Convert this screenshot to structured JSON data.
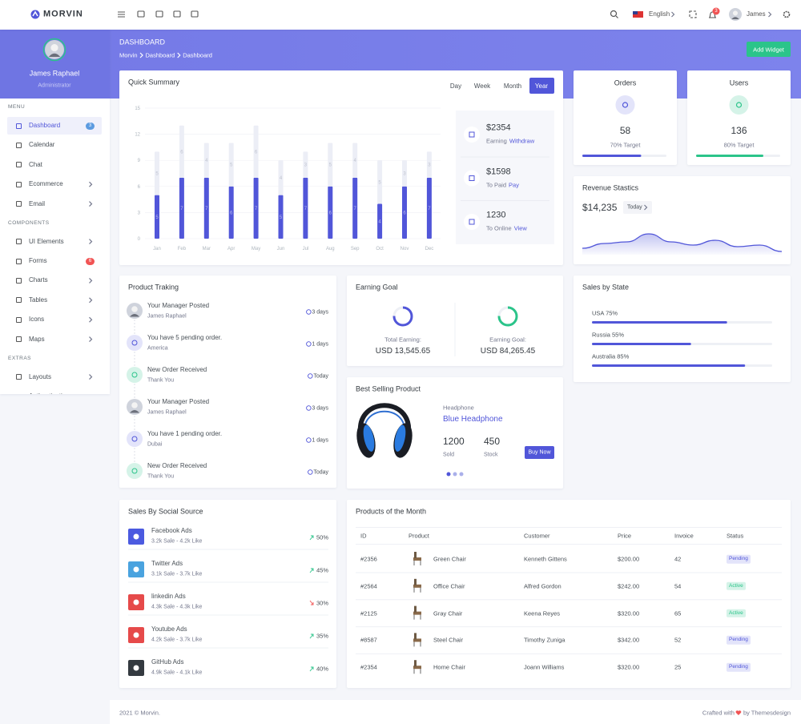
{
  "topbar": {
    "brand": "MORVIN",
    "language": "English",
    "notifications": "3",
    "user": "James"
  },
  "sidebar": {
    "profile": {
      "name": "James Raphael",
      "role": "Administrator"
    },
    "sections": [
      {
        "title": "MENU",
        "items": [
          {
            "label": "Dashboard",
            "badge": "3",
            "active": true
          },
          {
            "label": "Calendar"
          },
          {
            "label": "Chat"
          },
          {
            "label": "Ecommerce",
            "submenu": true
          },
          {
            "label": "Email",
            "submenu": true
          }
        ]
      },
      {
        "title": "COMPONENTS",
        "items": [
          {
            "label": "UI Elements",
            "submenu": true
          },
          {
            "label": "Forms",
            "badge": "6"
          },
          {
            "label": "Charts",
            "submenu": true
          },
          {
            "label": "Tables",
            "submenu": true
          },
          {
            "label": "Icons",
            "submenu": true
          },
          {
            "label": "Maps",
            "submenu": true
          }
        ]
      },
      {
        "title": "EXTRAS",
        "items": [
          {
            "label": "Layouts",
            "submenu": true
          },
          {
            "label": "Authentication",
            "submenu": true
          }
        ]
      }
    ]
  },
  "header": {
    "title": "DASHBOARD",
    "breadcrumb": [
      "Morvin",
      "Dashboard",
      "Dashboard"
    ],
    "button": "Add Widget"
  },
  "quick_summary": {
    "title": "Quick Summary",
    "tabs": [
      "Day",
      "Week",
      "Month",
      "Year"
    ],
    "active_tab": 3,
    "chart": {
      "type": "bar",
      "stacked": true,
      "categories": [
        "Jan",
        "Feb",
        "Mar",
        "Apr",
        "May",
        "Jun",
        "Jul",
        "Aug",
        "Sep",
        "Oct",
        "Nov",
        "Dec"
      ],
      "series": [
        {
          "color": "#5156d9",
          "values": [
            5,
            7,
            7,
            6,
            7,
            5,
            7,
            6,
            7,
            4,
            6,
            7
          ]
        },
        {
          "color": "#eceef6",
          "values": [
            5,
            6,
            4,
            5,
            6,
            4,
            3,
            5,
            4,
            5,
            3,
            3
          ]
        }
      ],
      "ylim": [
        0,
        15
      ],
      "yticks": [
        0,
        3,
        6,
        9,
        12,
        15
      ],
      "grid": true
    },
    "stats": [
      {
        "value": "$2354",
        "label": "Earning",
        "link": "Withdraw"
      },
      {
        "value": "$1598",
        "label": "To Paid",
        "link": "Pay"
      },
      {
        "value": "1230",
        "label": "To Online",
        "link": "View"
      }
    ]
  },
  "orders": {
    "title": "Orders",
    "value": "58",
    "target": {
      "value": 70,
      "label": "70% Target"
    },
    "color": "#5156d9"
  },
  "users": {
    "title": "Users",
    "value": "136",
    "target": {
      "value": 80,
      "label": "80% Target"
    },
    "color": "#2bc48a"
  },
  "revenue": {
    "title": "Revenue Stastics",
    "value": "$14,235",
    "period": "Today",
    "chart": {
      "type": "area",
      "values": [
        2,
        3.5,
        4,
        6.5,
        4,
        3,
        4.5,
        2.5,
        3,
        1
      ],
      "ylim": [
        0,
        10
      ],
      "color": "#5156d9"
    }
  },
  "product_tracking": {
    "title": "Product Traking",
    "items": [
      {
        "title": "Your Manager Posted",
        "subtitle": "James Raphael",
        "time": "3 days",
        "icon": "avatar"
      },
      {
        "title": "You have 5 pending order.",
        "subtitle": "America",
        "time": "1 days",
        "icon": "cart"
      },
      {
        "title": "New Order Received",
        "subtitle": "Thank You",
        "time": "Today",
        "icon": "user"
      },
      {
        "title": "Your Manager Posted",
        "subtitle": "James Raphael",
        "time": "3 days",
        "icon": "avatar"
      },
      {
        "title": "You have 1 pending order.",
        "subtitle": "Dubai",
        "time": "1 days",
        "icon": "cart"
      },
      {
        "title": "New Order Received",
        "subtitle": "Thank You",
        "time": "Today",
        "icon": "user"
      }
    ]
  },
  "earning_goal": {
    "title": "Earning Goal",
    "items": [
      {
        "label": "Total Earning:",
        "value": "USD 13,545.65",
        "color": "#5156d9"
      },
      {
        "label": "Earning Goal:",
        "value": "USD 84,265.45",
        "color": "#2bc48a"
      }
    ]
  },
  "best_selling": {
    "title": "Best Selling Product",
    "category": "Headphone",
    "name": "Blue Headphone",
    "stats": [
      {
        "value": "1200",
        "label": "Sold"
      },
      {
        "value": "450",
        "label": "Stock"
      }
    ],
    "button": "Buy Now"
  },
  "sales_by_state": {
    "title": "Sales by State",
    "items": [
      {
        "value": 75,
        "label": "USA 75%"
      },
      {
        "value": 55,
        "label": "Russia 55%"
      },
      {
        "value": 85,
        "label": "Australia 85%"
      }
    ]
  },
  "social": {
    "title": "Sales By Social Source",
    "items": [
      {
        "name": "Facebook Ads",
        "detail": "3.2k Sale - 4.2k Like",
        "change": "50%",
        "trend": "up",
        "color": "#4b5ae0"
      },
      {
        "name": "Twitter Ads",
        "detail": "3.1k Sale - 3.7k Like",
        "change": "45%",
        "trend": "up",
        "color": "#4aa3df"
      },
      {
        "name": "linkedin Ads",
        "detail": "4.3k Sale - 4.3k Like",
        "change": "30%",
        "trend": "down",
        "color": "#e64a4a"
      },
      {
        "name": "Youtube Ads",
        "detail": "4.2k Sale - 3.7k Like",
        "change": "35%",
        "trend": "up",
        "color": "#e64a4a"
      },
      {
        "name": "GitHub Ads",
        "detail": "4.9k Sale - 4.1k Like",
        "change": "40%",
        "trend": "up",
        "color": "#343a40"
      }
    ]
  },
  "products": {
    "title": "Products of the Month",
    "columns": [
      "ID",
      "Product",
      "Customer",
      "Price",
      "Invoice",
      "Status"
    ],
    "rows": [
      [
        "#2356",
        "Green Chair",
        "Kenneth Gittens",
        "$200.00",
        "42",
        "Pending"
      ],
      [
        "#2564",
        "Office Chair",
        "Alfred Gordon",
        "$242.00",
        "54",
        "Active"
      ],
      [
        "#2125",
        "Gray Chair",
        "Keena Reyes",
        "$320.00",
        "65",
        "Active"
      ],
      [
        "#8587",
        "Steel Chair",
        "Timothy Zuniga",
        "$342.00",
        "52",
        "Pending"
      ],
      [
        "#2354",
        "Home Chair",
        "Joann Williams",
        "$320.00",
        "25",
        "Pending"
      ]
    ]
  },
  "footer": {
    "left": "2021 © Morvin.",
    "right_prefix": "Crafted with",
    "right_suffix": "by Themesdesign"
  }
}
